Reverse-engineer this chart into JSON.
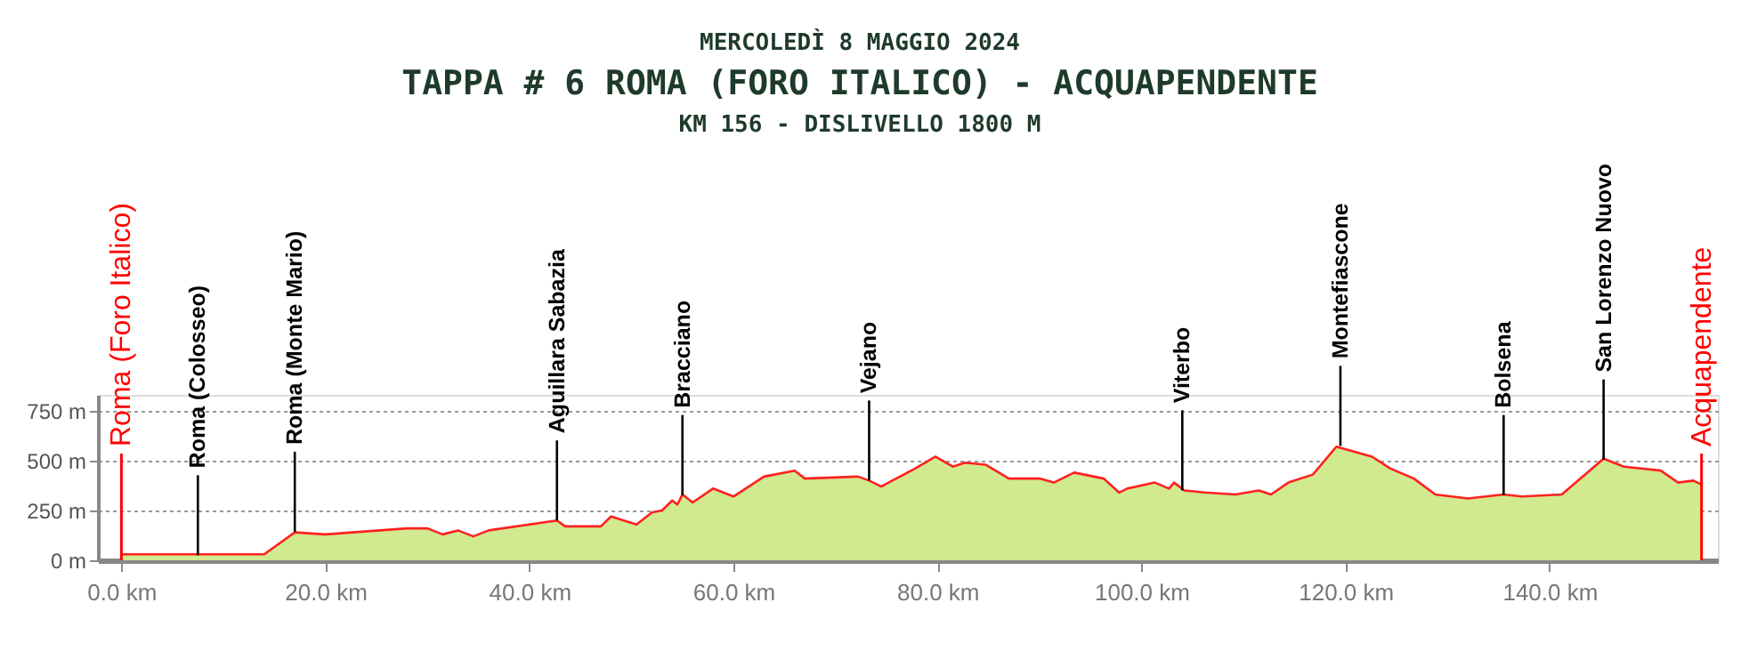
{
  "chart_data": {
    "type": "area",
    "title": "TAPPA # 6 ROMA (FORO ITALICO) - ACQUAPENDENTE",
    "subtitle": "KM 156 - DISLIVELLO 1800 M",
    "annotations": [
      "MERCOLEDÌ 8 MAGGIO 2024",
      {
        "text": "Roma (Colosseo)",
        "x": 7.5,
        "y": 25
      },
      {
        "text": "Roma (Monte Mario)",
        "x": 17,
        "y": 143
      },
      {
        "text": "Aguillara Sabazia",
        "x": 42.7,
        "y": 200
      },
      {
        "text": "Bracciano",
        "x": 55,
        "y": 327
      },
      {
        "text": "Vejano",
        "x": 73.3,
        "y": 400
      },
      {
        "text": "Viterbo",
        "x": 104,
        "y": 351
      },
      {
        "text": "Montefiascone",
        "x": 119.5,
        "y": 574
      },
      {
        "text": "Bolsena",
        "x": 135.5,
        "y": 327
      },
      {
        "text": "San Lorenzo Nuovo",
        "x": 145.3,
        "y": 506
      }
    ],
    "ref_lines": [
      {
        "axis": "x",
        "value": 0,
        "label": "Roma (Foro Italico)",
        "color": "#ff0000"
      },
      {
        "axis": "x",
        "value": 154.9,
        "label": "Acquapendente",
        "color": "#ff0000"
      }
    ],
    "x": [
      0,
      7.5,
      14,
      17,
      20,
      28,
      30,
      31.5,
      33,
      34.5,
      36,
      42.7,
      43.5,
      47,
      48,
      50.5,
      52,
      53,
      54,
      54.5,
      55,
      56,
      58,
      60,
      63,
      66,
      67,
      72.2,
      73.3,
      74.5,
      75.2,
      77.8,
      79.8,
      81.5,
      82.7,
      84.7,
      87,
      90,
      91.4,
      93.4,
      96.3,
      97.8,
      98.6,
      101.3,
      102.7,
      103.2,
      104.2,
      106.2,
      109.2,
      111.5,
      112.7,
      114.4,
      116.8,
      119.1,
      122.6,
      124.4,
      126.7,
      128.8,
      132,
      135.5,
      137.3,
      141.2,
      145.3,
      147.3,
      150.9,
      152.6,
      154.1,
      154.9
    ],
    "series": [
      {
        "color": "#d1e98f",
        "values": [
          30,
          30,
          30,
          140,
          130,
          160,
          160,
          130,
          150,
          120,
          150,
          200,
          170,
          170,
          220,
          180,
          240,
          250,
          300,
          280,
          330,
          290,
          360,
          320,
          420,
          450,
          410,
          420,
          400,
          370,
          390,
          460,
          520,
          470,
          490,
          480,
          410,
          410,
          390,
          440,
          410,
          340,
          360,
          390,
          360,
          390,
          350,
          340,
          330,
          350,
          330,
          390,
          430,
          570,
          520,
          460,
          410,
          330,
          310,
          330,
          320,
          330,
          510,
          470,
          450,
          390,
          400,
          380
        ]
      },
      {
        "type": "line",
        "color": "#ff2020",
        "values": [
          30,
          30,
          30,
          140,
          130,
          160,
          160,
          130,
          150,
          120,
          150,
          200,
          170,
          170,
          220,
          180,
          240,
          250,
          300,
          280,
          330,
          290,
          360,
          320,
          420,
          450,
          410,
          420,
          400,
          370,
          390,
          460,
          520,
          470,
          490,
          480,
          410,
          410,
          390,
          440,
          410,
          340,
          360,
          390,
          360,
          390,
          350,
          340,
          330,
          350,
          330,
          390,
          430,
          570,
          520,
          460,
          410,
          330,
          310,
          330,
          320,
          330,
          510,
          470,
          450,
          390,
          400,
          380
        ]
      }
    ],
    "xlim": [
      -2.3,
      156.5
    ],
    "ylim": [
      0,
      830
    ],
    "xticks": [
      {
        "value": 0,
        "label": "0.0 km"
      },
      {
        "value": 20,
        "label": "20.0 km"
      },
      {
        "value": 40,
        "label": "40.0 km"
      },
      {
        "value": 60,
        "label": "60.0 km"
      },
      {
        "value": 80,
        "label": "80.0 km"
      },
      {
        "value": 100,
        "label": "100.0 km"
      },
      {
        "value": 120,
        "label": "120.0 km"
      },
      {
        "value": 140,
        "label": "140.0 km"
      }
    ],
    "yticks": [
      {
        "value": 0,
        "label": "0 m"
      },
      {
        "value": 250,
        "label": "250 m"
      },
      {
        "value": 500,
        "label": "500 m"
      },
      {
        "value": 750,
        "label": "750 m"
      }
    ],
    "grid": "y"
  }
}
